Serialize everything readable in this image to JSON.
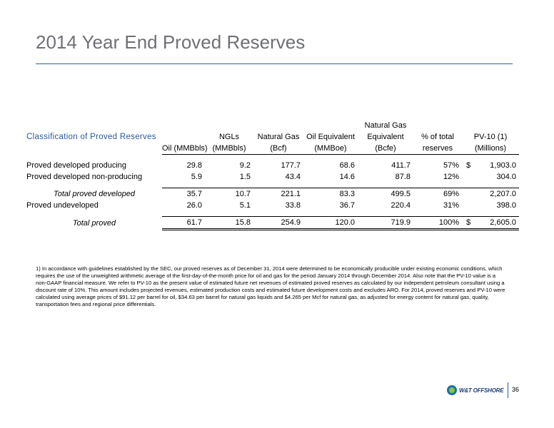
{
  "title": "2014 Year End Proved Reserves",
  "table": {
    "classification_header": "Classification of Proved Reserves",
    "columns": [
      {
        "line1": "",
        "line2": "Oil (MMBbls)"
      },
      {
        "line1": "NGLs",
        "line2": "(MMBbls)"
      },
      {
        "line1": "Natural Gas",
        "line2": "(Bcf)"
      },
      {
        "line1": "Oil Equivalent",
        "line2": "(MMBoe)"
      },
      {
        "line0": "Natural Gas",
        "line1": "Equivalent",
        "line2": "(Bcfe)"
      },
      {
        "line1": "% of total",
        "line2": "reserves"
      },
      {
        "line1": "PV-10 (1)",
        "line2": "(Millions)"
      }
    ],
    "rows": {
      "pdp": {
        "label": "Proved developed producing",
        "values": [
          "29.8",
          "9.2",
          "177.7",
          "68.6",
          "411.7",
          "57%",
          "1,903.0"
        ],
        "dollar": "$"
      },
      "pdnp": {
        "label": "Proved developed non-producing",
        "values": [
          "5.9",
          "1.5",
          "43.4",
          "14.6",
          "87.8",
          "12%",
          "304.0"
        ]
      },
      "tpd": {
        "label": "Total proved developed",
        "values": [
          "35.7",
          "10.7",
          "221.1",
          "83.3",
          "499.5",
          "69%",
          "2,207.0"
        ]
      },
      "pud": {
        "label": "Proved undeveloped",
        "values": [
          "26.0",
          "5.1",
          "33.8",
          "36.7",
          "220.4",
          "31%",
          "398.0"
        ]
      },
      "total": {
        "label": "Total proved",
        "values": [
          "61.7",
          "15.8",
          "254.9",
          "120.0",
          "719.9",
          "100%",
          "2,605.0"
        ],
        "dollar": "$"
      }
    }
  },
  "footnote": "1)  In accordance with guidelines established by the SEC, our proved reserves as of December 31, 2014 were determined to be economically producible under existing economic conditions, which requires the use of the unweighted arithmetic average of the first-day-of-the-month price for oil and gas for the period January 2014 through December 2014.  Also note that the PV-10 value is a non-GAAP financial measure.  We refer to PV-10 as the present value of estimated future net revenues of estimated proved reserves as calculated by our independent petroleum consultant using a discount rate of 10%.  This amount includes projected revenues, estimated production costs and estimated future development costs and excludes ARO.  For 2014, proved reserves and PV-10 were calculated using average prices of $91.12 per barrel for oil, $34.63 per barrel for natural gas liquids and $4.265 per Mcf for natural gas, as adjusted for energy content for natural gas, quality, transportation fees and regional price differentials.",
  "footer": {
    "logo_text": "W&T OFFSHORE",
    "logo_icon": "wt-offshore-logo-icon",
    "page_number": "36"
  },
  "colors": {
    "title": "#6f7076",
    "accent": "#2a5a9a"
  }
}
